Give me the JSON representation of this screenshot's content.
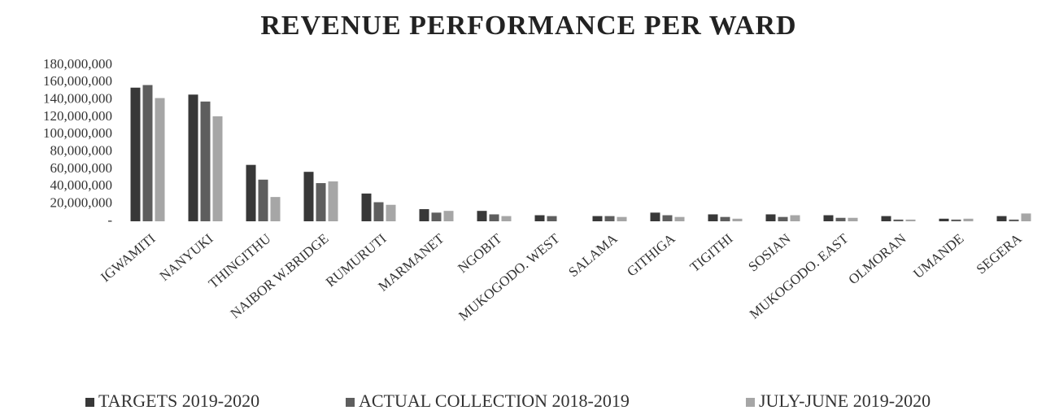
{
  "chart_data": {
    "type": "bar",
    "title": "REVENUE PERFORMANCE PER WARD",
    "categories": [
      "IGWAMITI",
      "NANYUKI",
      "THINGITHU",
      "NAIBOR W.BRIDGE",
      "RUMURUTI",
      "MARMANET",
      "NGOBIT",
      "MUKOGODO. WEST",
      "SALAMA",
      "GITHIGA",
      "TIGITHI",
      "SOSIAN",
      "MUKOGODO. EAST",
      "OLMORAN",
      "UMANDE",
      "SEGERA"
    ],
    "series": [
      {
        "name": "TARGETS 2019-2020",
        "color": "#383838",
        "values": [
          154000000,
          146000000,
          65000000,
          57000000,
          32000000,
          14000000,
          12000000,
          7000000,
          6000000,
          10000000,
          8000000,
          8000000,
          7000000,
          6000000,
          3000000,
          6000000
        ]
      },
      {
        "name": "ACTUAL COLLECTION 2018-2019",
        "color": "#5e5e5e",
        "values": [
          157000000,
          138000000,
          48000000,
          44000000,
          22000000,
          10000000,
          8000000,
          6000000,
          6000000,
          7000000,
          5000000,
          5000000,
          4000000,
          2000000,
          2000000,
          2000000
        ]
      },
      {
        "name": "JULY-JUNE  2019-2020",
        "color": "#a6a6a6",
        "values": [
          142000000,
          121000000,
          28000000,
          46000000,
          19000000,
          12000000,
          6000000,
          0,
          5000000,
          5000000,
          3000000,
          7000000,
          4000000,
          2000000,
          3000000,
          9000000
        ]
      }
    ],
    "ylim": [
      0,
      180000000
    ],
    "yticks": [
      {
        "value": 0,
        "label": "-"
      },
      {
        "value": 20000000,
        "label": "20,000,000"
      },
      {
        "value": 40000000,
        "label": "40,000,000"
      },
      {
        "value": 60000000,
        "label": "60,000,000"
      },
      {
        "value": 80000000,
        "label": "80,000,000"
      },
      {
        "value": 100000000,
        "label": "100,000,000"
      },
      {
        "value": 120000000,
        "label": "120,000,000"
      },
      {
        "value": 140000000,
        "label": "140,000,000"
      },
      {
        "value": 160000000,
        "label": "160,000,000"
      },
      {
        "value": 180000000,
        "label": "180,000,000"
      }
    ],
    "grid": false,
    "legend": "bottom"
  }
}
